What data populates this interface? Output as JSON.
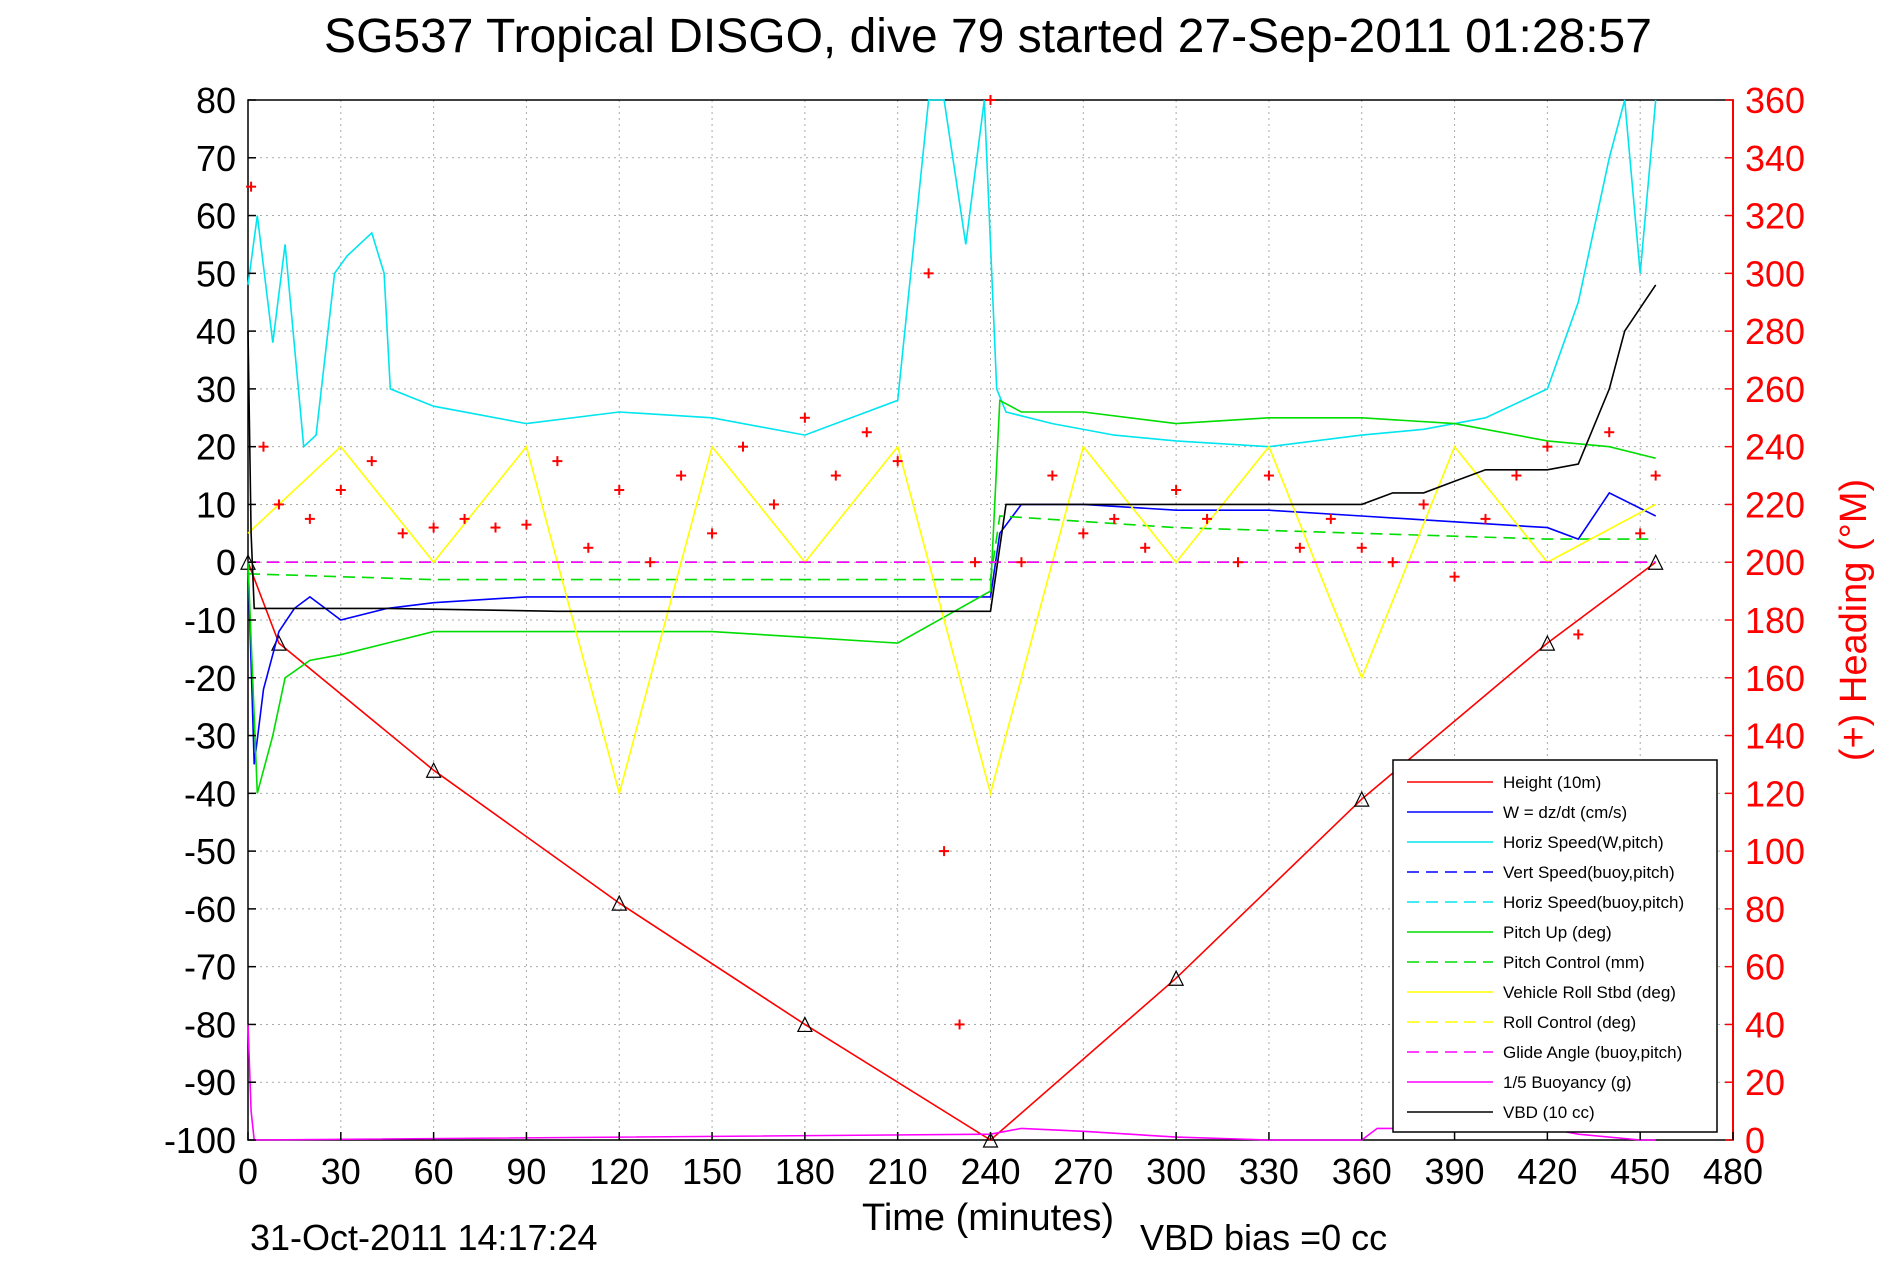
{
  "chart_data": {
    "type": "line",
    "title": "SG537 Tropical DISGO, dive 79 started 27-Sep-2011 01:28:57",
    "xlabel": "Time (minutes)",
    "ylabel": "",
    "y2label": "(+) Heading (°M)",
    "xlim": [
      0,
      480
    ],
    "ylim": [
      -100,
      80
    ],
    "y2lim": [
      0,
      360
    ],
    "xticks": [
      0,
      30,
      60,
      90,
      120,
      150,
      180,
      210,
      240,
      270,
      300,
      330,
      360,
      390,
      420,
      450,
      480
    ],
    "yticks": [
      80,
      70,
      60,
      50,
      40,
      30,
      20,
      10,
      0,
      -10,
      -20,
      -30,
      -40,
      -50,
      -60,
      -70,
      -80,
      -90,
      -100
    ],
    "y2ticks": [
      360,
      340,
      320,
      300,
      280,
      260,
      240,
      220,
      200,
      180,
      160,
      140,
      120,
      100,
      80,
      60,
      40,
      20,
      0
    ],
    "grid": true,
    "legend_position": "bottom-right",
    "footer_left": "31-Oct-2011 14:17:24",
    "footer_right": "VBD bias =0 cc",
    "series": [
      {
        "name": "Height (10m)",
        "color": "#ff0000",
        "style": "solid",
        "markers": "triangles",
        "x": [
          0,
          10,
          60,
          120,
          180,
          240,
          300,
          360,
          420,
          455
        ],
        "y": [
          0,
          -14,
          -36,
          -59,
          -80,
          -100,
          -72,
          -41,
          -14,
          0
        ]
      },
      {
        "name": "W = dz/dt (cm/s)",
        "color": "#0000ff",
        "style": "solid",
        "x": [
          0,
          2,
          5,
          10,
          15,
          20,
          25,
          30,
          45,
          60,
          90,
          120,
          150,
          180,
          210,
          240,
          243,
          250,
          270,
          300,
          330,
          360,
          390,
          420,
          430,
          440,
          455
        ],
        "y": [
          0,
          -35,
          -22,
          -12,
          -8,
          -6,
          -8,
          -10,
          -8,
          -7,
          -6,
          -6,
          -6,
          -6,
          -6,
          -6,
          5,
          10,
          10,
          9,
          9,
          8,
          7,
          6,
          4,
          12,
          8
        ]
      },
      {
        "name": "Horiz Speed(W,pitch)",
        "color": "#00e5ee",
        "style": "solid",
        "x": [
          0,
          3,
          8,
          12,
          18,
          22,
          28,
          32,
          40,
          44,
          46,
          60,
          90,
          120,
          150,
          180,
          210,
          220,
          225,
          232,
          238,
          242,
          245,
          260,
          280,
          300,
          330,
          360,
          380,
          400,
          420,
          430,
          440,
          445,
          450,
          455
        ],
        "y": [
          48,
          60,
          38,
          55,
          20,
          22,
          50,
          53,
          57,
          50,
          30,
          27,
          24,
          26,
          25,
          22,
          28,
          80,
          80,
          55,
          80,
          30,
          26,
          24,
          22,
          21,
          20,
          22,
          23,
          25,
          30,
          45,
          70,
          80,
          50,
          80
        ]
      },
      {
        "name": "Vert Speed(buoy,pitch)",
        "color": "#0000ff",
        "style": "dashed",
        "x": [
          0,
          455
        ],
        "y": [
          0,
          0
        ]
      },
      {
        "name": "Horiz Speed(buoy,pitch)",
        "color": "#00e5ee",
        "style": "dashed",
        "x": [
          0,
          455
        ],
        "y": [
          0,
          0
        ]
      },
      {
        "name": "Pitch Up (deg)",
        "color": "#00dd00",
        "style": "solid",
        "x": [
          0,
          3,
          8,
          12,
          20,
          30,
          45,
          60,
          90,
          120,
          150,
          180,
          210,
          230,
          240,
          243,
          250,
          270,
          300,
          330,
          360,
          390,
          420,
          440,
          455
        ],
        "y": [
          0,
          -40,
          -30,
          -20,
          -17,
          -16,
          -14,
          -12,
          -12,
          -12,
          -12,
          -13,
          -14,
          -8,
          -5,
          28,
          26,
          26,
          24,
          25,
          25,
          24,
          21,
          20,
          18
        ]
      },
      {
        "name": "Pitch Control (mm)",
        "color": "#00dd00",
        "style": "dashed",
        "x": [
          0,
          60,
          120,
          180,
          240,
          243,
          300,
          360,
          420,
          455
        ],
        "y": [
          -2,
          -3,
          -3,
          -3,
          -3,
          8,
          6,
          5,
          4,
          4
        ]
      },
      {
        "name": "Vehicle Roll Stbd (deg)",
        "color": "#ffff00",
        "style": "solid",
        "x": [
          0,
          30,
          60,
          90,
          120,
          150,
          180,
          210,
          240,
          270,
          300,
          330,
          360,
          390,
          420,
          455
        ],
        "y": [
          5,
          20,
          0,
          20,
          -40,
          20,
          0,
          20,
          -40,
          20,
          0,
          20,
          -20,
          20,
          0,
          10
        ]
      },
      {
        "name": "Roll Control (deg)",
        "color": "#ffff00",
        "style": "dashed",
        "x": [
          0,
          455
        ],
        "y": [
          0,
          0
        ]
      },
      {
        "name": "Glide Angle (buoy,pitch)",
        "color": "#ff00ff",
        "style": "dashed",
        "x": [
          0,
          455
        ],
        "y": [
          0,
          0
        ]
      },
      {
        "name": "1/5 Buoyancy (g)",
        "color": "#ff00ff",
        "style": "solid",
        "x": [
          0,
          1,
          2,
          240,
          250,
          270,
          300,
          330,
          360,
          365,
          380,
          420,
          430,
          450,
          455
        ],
        "y": [
          -80,
          -95,
          -100,
          -99,
          -98,
          -98.5,
          -99.5,
          -100,
          -100,
          -98,
          -98,
          -98,
          -99,
          -100,
          -100
        ]
      },
      {
        "name": "VBD (10 cc)",
        "color": "#000000",
        "style": "solid",
        "x": [
          0,
          1,
          2,
          5,
          45,
          100,
          200,
          240,
          245,
          300,
          350,
          360,
          370,
          380,
          390,
          400,
          420,
          430,
          440,
          445,
          455
        ],
        "y": [
          40,
          5,
          -8,
          -8,
          -8,
          -8.5,
          -8.5,
          -8.5,
          10,
          10,
          10,
          10,
          12,
          12,
          14,
          16,
          16,
          17,
          30,
          40,
          48
        ]
      },
      {
        "name": "Heading (°M)",
        "color": "#ff0000",
        "style": "markers",
        "axis": "right",
        "x": [
          1,
          5,
          10,
          20,
          30,
          40,
          50,
          60,
          70,
          80,
          90,
          100,
          110,
          120,
          130,
          140,
          150,
          160,
          170,
          180,
          190,
          200,
          210,
          220,
          225,
          230,
          235,
          240,
          250,
          260,
          270,
          280,
          290,
          300,
          310,
          320,
          330,
          340,
          350,
          360,
          370,
          380,
          390,
          400,
          410,
          420,
          430,
          440,
          450,
          455
        ],
        "y": [
          330,
          240,
          220,
          215,
          225,
          235,
          210,
          212,
          215,
          212,
          213,
          235,
          205,
          225,
          200,
          230,
          210,
          240,
          220,
          250,
          230,
          245,
          235,
          300,
          100,
          40,
          200,
          360,
          200,
          230,
          210,
          215,
          205,
          225,
          215,
          200,
          230,
          205,
          215,
          205,
          200,
          220,
          195,
          215,
          230,
          240,
          175,
          245,
          210,
          230
        ]
      }
    ]
  }
}
